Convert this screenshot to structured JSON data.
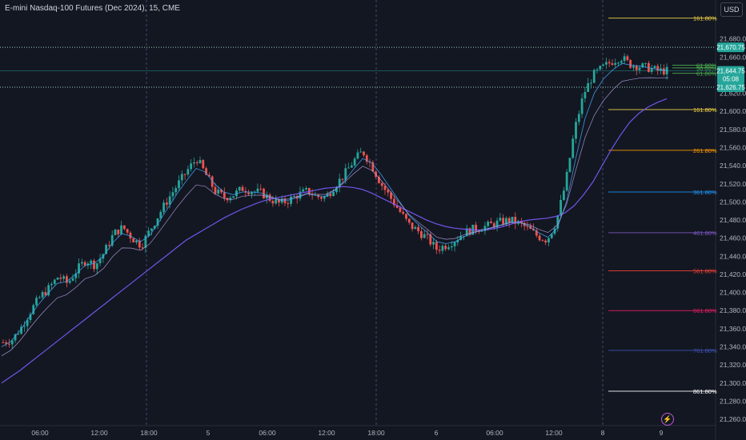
{
  "header": {
    "title": "E-mini Nasdaq-100 Futures (Dec 2024), 15, CME",
    "currency": "USD"
  },
  "icons": {
    "flash": "lightning-icon"
  },
  "chart_data": {
    "type": "candlestick",
    "ylim": [
      21253,
      21723
    ],
    "y_ticks": [
      "21,680.00",
      "21,660.00",
      "21,620.00",
      "21,600.00",
      "21,580.00",
      "21,560.00",
      "21,540.00",
      "21,520.00",
      "21,500.00",
      "21,480.00",
      "21,460.00",
      "21,440.00",
      "21,420.00",
      "21,400.00",
      "21,380.00",
      "21,360.00",
      "21,340.00",
      "21,320.00",
      "21,300.00",
      "21,280.00",
      "21,260.00"
    ],
    "x_ticks": [
      "06:00",
      "12:00",
      "18:00",
      "5",
      "06:00",
      "12:00",
      "18:00",
      "6",
      "06:00",
      "12:00",
      "8",
      "9"
    ],
    "session_breaks": [
      "18:00",
      "18:00",
      "8"
    ],
    "price_labels": [
      {
        "text": "21,670.75",
        "value": 21670.75,
        "color": "#26a69a"
      },
      {
        "text": "21,644.75",
        "value": 21644.75,
        "color": "#26a69a"
      },
      {
        "text": "05:08",
        "value": 21636,
        "color": "#26a69a"
      },
      {
        "text": "21,626.75",
        "value": 21626.75,
        "color": "#26a69a"
      }
    ],
    "dotted_levels": [
      21670.75,
      21626.75
    ],
    "current_price": 21644.75,
    "fib_levels": [
      {
        "label": "161.80%",
        "value": 21703,
        "color": "#f5d547"
      },
      {
        "label": "61.80%",
        "value": 21651,
        "color": "#4caf50"
      },
      {
        "label": "50.00%",
        "value": 21648,
        "color": "#4caf50"
      },
      {
        "label": "61.80%",
        "value": 21642,
        "color": "#4caf50"
      },
      {
        "label": "161.80%",
        "value": 21602,
        "color": "#f5d547"
      },
      {
        "label": "261.80%",
        "value": 21557,
        "color": "#ff9800"
      },
      {
        "label": "361.80%",
        "value": 21511,
        "color": "#2196f3"
      },
      {
        "label": "461.80%",
        "value": 21466,
        "color": "#7e57c2"
      },
      {
        "label": "561.80%",
        "value": 21424,
        "color": "#f44336"
      },
      {
        "label": "661.80%",
        "value": 21380,
        "color": "#e91e63"
      },
      {
        "label": "761.80%",
        "value": 21336,
        "color": "#3f51b5"
      },
      {
        "label": "861.80%",
        "value": 21291,
        "color": "#ffffff"
      }
    ],
    "price_path": [
      21345,
      21348,
      21362,
      21380,
      21395,
      21405,
      21418,
      21410,
      21425,
      21436,
      21430,
      21445,
      21465,
      21472,
      21460,
      21452,
      21470,
      21488,
      21505,
      21520,
      21535,
      21548,
      21530,
      21512,
      21505,
      21508,
      21515,
      21512,
      21510,
      21503,
      21498,
      21502,
      21508,
      21512,
      21506,
      21505,
      21518,
      21530,
      21545,
      21556,
      21540,
      21520,
      21505,
      21490,
      21475,
      21468,
      21460,
      21448,
      21452,
      21458,
      21466,
      21470,
      21472,
      21475,
      21478,
      21480,
      21476,
      21470,
      21462,
      21458,
      21478,
      21520,
      21580,
      21620,
      21640,
      21648,
      21655,
      21660,
      21652,
      21650,
      21648,
      21645,
      21644.75
    ],
    "ma_fast": [
      21340,
      21346,
      21358,
      21373,
      21387,
      21399,
      21410,
      21412,
      21420,
      21430,
      21432,
      21440,
      21455,
      21465,
      21462,
      21456,
      21463,
      21478,
      21494,
      21510,
      21524,
      21537,
      21533,
      21520,
      21511,
      21508,
      21511,
      21511,
      21510,
      21506,
      21502,
      21502,
      21505,
      21509,
      21507,
      21506,
      21513,
      21523,
      21536,
      21548,
      21543,
      21530,
      21515,
      21500,
      21485,
      21475,
      21466,
      21456,
      21454,
      21456,
      21462,
      21466,
      21469,
      21472,
      21475,
      21478,
      21477,
      21473,
      21466,
      21461,
      21471,
      21500,
      21548,
      21592,
      21620,
      21636,
      21646,
      21653,
      21651,
      21650,
      21648,
      21646,
      21645
    ],
    "ma_slow": [
      21300,
      21307,
      21314,
      21322,
      21330,
      21338,
      21346,
      21354,
      21362,
      21370,
      21378,
      21386,
      21394,
      21402,
      21410,
      21418,
      21426,
      21434,
      21442,
      21450,
      21458,
      21464,
      21470,
      21476,
      21482,
      21487,
      21492,
      21496,
      21500,
      21503,
      21505,
      21507,
      21509,
      21511,
      21513,
      21515,
      21516,
      21517,
      21516,
      21514,
      21510,
      21505,
      21500,
      21495,
      21490,
      21485,
      21480,
      21476,
      21473,
      21471,
      21470,
      21469,
      21469,
      21470,
      21472,
      21475,
      21478,
      21480,
      21481,
      21482,
      21484,
      21488,
      21496,
      21508,
      21522,
      21540,
      21558,
      21574,
      21588,
      21598,
      21605,
      21610,
      21614
    ]
  }
}
